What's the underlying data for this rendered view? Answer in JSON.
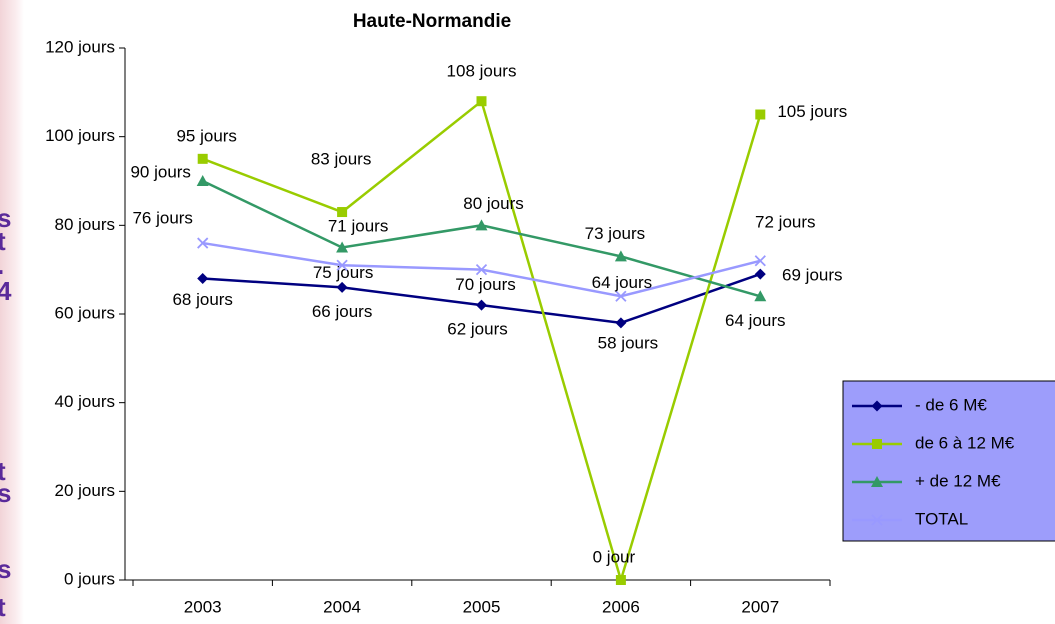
{
  "side_fragments": [
    "s",
    "t",
    ".",
    "4",
    "t",
    "s",
    "s",
    "t"
  ],
  "chart_data": {
    "type": "line",
    "title": "Haute-Normandie",
    "categories": [
      "2003",
      "2004",
      "2005",
      "2006",
      "2007"
    ],
    "ylim": [
      0,
      120
    ],
    "yticks": [
      {
        "value": 0,
        "label": "0 jours"
      },
      {
        "value": 20,
        "label": "20 jours"
      },
      {
        "value": 40,
        "label": "40 jours"
      },
      {
        "value": 60,
        "label": "60 jours"
      },
      {
        "value": 80,
        "label": "80 jours"
      },
      {
        "value": 100,
        "label": "100 jours"
      },
      {
        "value": 120,
        "label": "120 jours"
      }
    ],
    "grid": false,
    "legend": "right",
    "series": [
      {
        "name": "- de 6 M€",
        "color": "#000080",
        "marker": "diamond",
        "values": [
          68,
          66,
          62,
          58,
          69
        ],
        "value_labels": [
          "68 jours",
          "66 jours",
          "62 jours",
          "58 jours",
          "69 jours"
        ]
      },
      {
        "name": "de 6 à 12 M€",
        "color": "#99cc00",
        "marker": "square",
        "values": [
          95,
          83,
          108,
          0,
          105
        ],
        "value_labels": [
          "95 jours",
          "83 jours",
          "108 jours",
          "0 jour",
          "105 jours"
        ]
      },
      {
        "name": "+ de 12 M€",
        "color": "#339966",
        "marker": "triangle",
        "values": [
          90,
          75,
          80,
          73,
          64
        ],
        "value_labels": [
          "90 jours",
          "75 jours",
          "80 jours",
          "73 jours",
          "64 jours"
        ]
      },
      {
        "name": "TOTAL",
        "color": "#9999ff",
        "marker": "x",
        "values": [
          76,
          71,
          70,
          64,
          72
        ],
        "value_labels": [
          "76 jours",
          "71 jours",
          "70 jours",
          "64 jours",
          "72 jours"
        ]
      }
    ]
  }
}
